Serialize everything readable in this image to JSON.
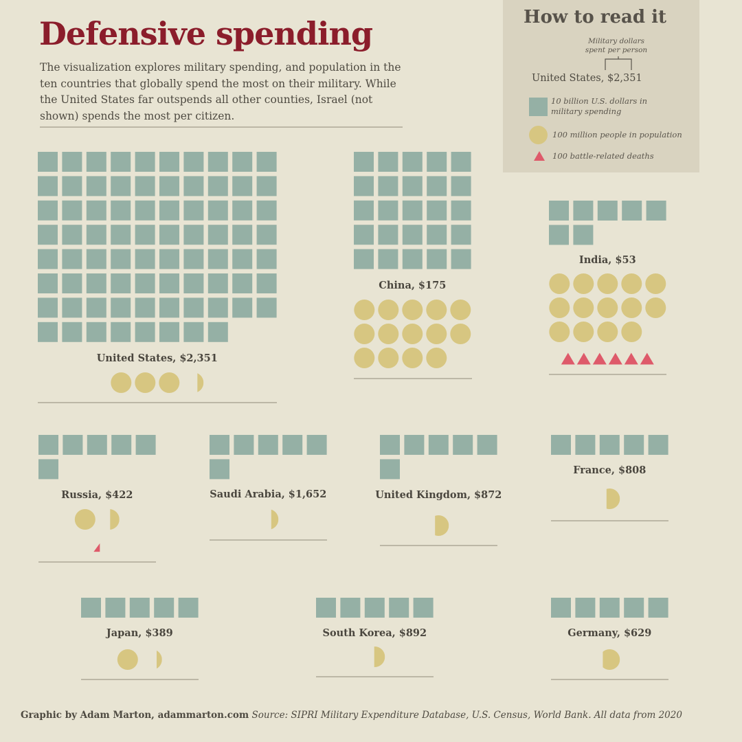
{
  "header": {
    "title": "Defensive spending",
    "intro": "The visualization explores military spending, and population in the ten countries that globally spend the most on their military. While the United States far outspends all other counties, Israel (not shown) spends the most per citizen."
  },
  "legend": {
    "title": "How to read it",
    "note": "Military dollars spent per person",
    "example_label": "United States, $2,351",
    "square_text": "10 billion U.S. dollars in military spending",
    "circle_text": "100 million people in population",
    "triangle_text": "100 battle-related deaths"
  },
  "colors": {
    "background": "#e8e4d3",
    "spending_square": "#95b0a5",
    "population_circle": "#d7c681",
    "deaths_triangle": "#de5a6a",
    "title": "#8b1d2b"
  },
  "chart_data": {
    "type": "table",
    "units": {
      "square": "10 billion U.S. dollars in military spending",
      "circle": "100 million people in population",
      "triangle": "100 battle-related deaths"
    },
    "countries": [
      {
        "id": "us",
        "name": "United States",
        "per_person": "$2,351",
        "label": "United States, $2,351",
        "spending_units": 78,
        "population_units": 3.3,
        "deaths_units": 0
      },
      {
        "id": "china",
        "name": "China",
        "per_person": "$175",
        "label": "China, $175",
        "spending_units": 25,
        "population_units": 14,
        "deaths_units": 0
      },
      {
        "id": "india",
        "name": "India",
        "per_person": "$53",
        "label": "India, $53",
        "spending_units": 7,
        "population_units": 14,
        "deaths_units": 6
      },
      {
        "id": "russia",
        "name": "Russia",
        "per_person": "$422",
        "label": "Russia, $422",
        "spending_units": 6,
        "population_units": 1.45,
        "deaths_units": 0.5
      },
      {
        "id": "saudi",
        "name": "Saudi Arabia",
        "per_person": "$1,652",
        "label": "Saudi Arabia, $1,652",
        "spending_units": 6,
        "population_units": 0.35,
        "deaths_units": 0
      },
      {
        "id": "uk",
        "name": "United Kingdom",
        "per_person": "$872",
        "label": "United Kingdom, $872",
        "spending_units": 6,
        "population_units": 0.67,
        "deaths_units": 0
      },
      {
        "id": "france",
        "name": "France",
        "per_person": "$808",
        "label": "France, $808",
        "spending_units": 5,
        "population_units": 0.65,
        "deaths_units": 0
      },
      {
        "id": "japan",
        "name": "Japan",
        "per_person": "$389",
        "label": "Japan, $389",
        "spending_units": 5,
        "population_units": 1.26,
        "deaths_units": 0
      },
      {
        "id": "korea",
        "name": "South Korea",
        "per_person": "$892",
        "label": "South Korea, $892",
        "spending_units": 5,
        "population_units": 0.52,
        "deaths_units": 0
      },
      {
        "id": "germany",
        "name": "Germany",
        "per_person": "$629",
        "label": "Germany, $629",
        "spending_units": 5,
        "population_units": 0.83,
        "deaths_units": 0
      }
    ]
  },
  "footer": {
    "credit": "Graphic by Adam Marton, adammarton.com",
    "source": "Source: SIPRI Military Expenditure Database, U.S. Census, World Bank. All data from 2020"
  }
}
